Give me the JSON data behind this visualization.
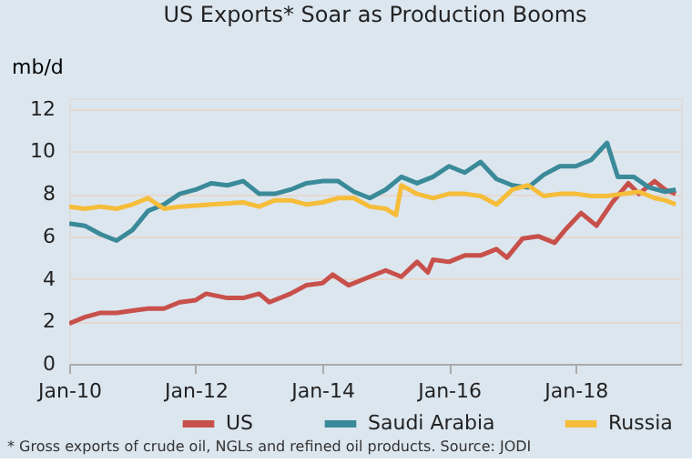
{
  "chart_data": {
    "type": "line",
    "title": "US Exports* Soar as Production Booms",
    "ylabel": "mb/d",
    "xlim": [
      "2010-01",
      "2019-09"
    ],
    "xticks": [
      {
        "value": "2010-01",
        "label": "Jan-10"
      },
      {
        "value": "2012-01",
        "label": "Jan-12"
      },
      {
        "value": "2014-01",
        "label": "Jan-14"
      },
      {
        "value": "2016-01",
        "label": "Jan-16"
      },
      {
        "value": "2018-01",
        "label": "Jan-18"
      }
    ],
    "ylim": [
      0,
      12.5
    ],
    "yticks": [
      0,
      2,
      4,
      6,
      8,
      10,
      12
    ],
    "grid": "y",
    "legend": "bottom",
    "annotations": [
      "* Gross exports of crude oil, NGLs and refined oil products. Source: JODI"
    ],
    "series": [
      {
        "name": "US",
        "color": "#c8504b",
        "x": [
          "2010-01",
          "2010-04",
          "2010-07",
          "2010-10",
          "2011-01",
          "2011-04",
          "2011-07",
          "2011-10",
          "2012-01",
          "2012-03",
          "2012-07",
          "2012-10",
          "2013-01",
          "2013-03",
          "2013-07",
          "2013-10",
          "2014-01",
          "2014-03",
          "2014-06",
          "2014-10",
          "2015-01",
          "2015-04",
          "2015-07",
          "2015-09",
          "2015-10",
          "2016-01",
          "2016-04",
          "2016-07",
          "2016-10",
          "2016-12",
          "2017-03",
          "2017-06",
          "2017-09",
          "2017-11",
          "2018-02",
          "2018-05",
          "2018-08",
          "2018-11",
          "2019-01",
          "2019-04",
          "2019-06",
          "2019-08"
        ],
        "values": [
          1.9,
          2.2,
          2.4,
          2.4,
          2.5,
          2.6,
          2.6,
          2.9,
          3.0,
          3.3,
          3.1,
          3.1,
          3.3,
          2.9,
          3.3,
          3.7,
          3.8,
          4.2,
          3.7,
          4.1,
          4.4,
          4.1,
          4.8,
          4.3,
          4.9,
          4.8,
          5.1,
          5.1,
          5.4,
          5.0,
          5.9,
          6.0,
          5.7,
          6.3,
          7.1,
          6.5,
          7.6,
          8.5,
          8.0,
          8.6,
          8.2,
          8.0
        ]
      },
      {
        "name": "Saudi Arabia",
        "color": "#3a8a99",
        "x": [
          "2010-01",
          "2010-04",
          "2010-07",
          "2010-10",
          "2011-01",
          "2011-04",
          "2011-07",
          "2011-10",
          "2012-01",
          "2012-04",
          "2012-07",
          "2012-10",
          "2013-01",
          "2013-04",
          "2013-07",
          "2013-10",
          "2014-01",
          "2014-04",
          "2014-07",
          "2014-10",
          "2015-01",
          "2015-04",
          "2015-07",
          "2015-10",
          "2016-01",
          "2016-04",
          "2016-07",
          "2016-10",
          "2017-01",
          "2017-04",
          "2017-07",
          "2017-10",
          "2018-01",
          "2018-04",
          "2018-07",
          "2018-09",
          "2018-12",
          "2019-03",
          "2019-06",
          "2019-08"
        ],
        "values": [
          6.6,
          6.5,
          6.1,
          5.8,
          6.3,
          7.2,
          7.5,
          8.0,
          8.2,
          8.5,
          8.4,
          8.6,
          8.0,
          8.0,
          8.2,
          8.5,
          8.6,
          8.6,
          8.1,
          7.8,
          8.2,
          8.8,
          8.5,
          8.8,
          9.3,
          9.0,
          9.5,
          8.7,
          8.4,
          8.3,
          8.9,
          9.3,
          9.3,
          9.6,
          10.4,
          8.8,
          8.8,
          8.3,
          8.1,
          8.2
        ]
      },
      {
        "name": "Russia",
        "color": "#f5bd3a",
        "x": [
          "2010-01",
          "2010-04",
          "2010-07",
          "2010-10",
          "2011-01",
          "2011-04",
          "2011-07",
          "2011-10",
          "2012-04",
          "2012-10",
          "2013-01",
          "2013-04",
          "2013-07",
          "2013-10",
          "2014-01",
          "2014-04",
          "2014-07",
          "2014-10",
          "2015-01",
          "2015-03",
          "2015-04",
          "2015-07",
          "2015-10",
          "2016-01",
          "2016-04",
          "2016-07",
          "2016-10",
          "2017-01",
          "2017-04",
          "2017-07",
          "2017-10",
          "2018-01",
          "2018-04",
          "2018-07",
          "2018-10",
          "2019-01",
          "2019-04",
          "2019-06",
          "2019-08"
        ],
        "values": [
          7.4,
          7.3,
          7.4,
          7.3,
          7.5,
          7.8,
          7.3,
          7.4,
          7.5,
          7.6,
          7.4,
          7.7,
          7.7,
          7.5,
          7.6,
          7.8,
          7.8,
          7.4,
          7.3,
          7.0,
          8.4,
          8.0,
          7.8,
          8.0,
          8.0,
          7.9,
          7.5,
          8.2,
          8.4,
          7.9,
          8.0,
          8.0,
          7.9,
          7.9,
          8.0,
          8.1,
          7.8,
          7.7,
          7.5
        ]
      }
    ]
  }
}
